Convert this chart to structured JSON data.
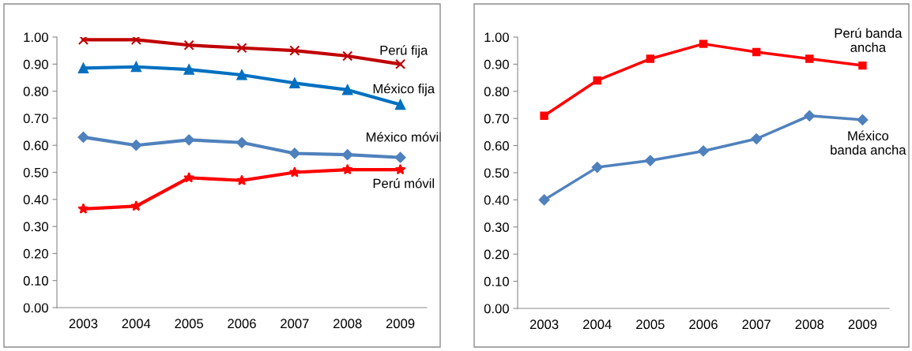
{
  "chart_data": [
    {
      "type": "line",
      "categories": [
        "2003",
        "2004",
        "2005",
        "2006",
        "2007",
        "2008",
        "2009"
      ],
      "ylim": [
        0,
        1
      ],
      "yticks": [
        {
          "value": 0,
          "label": "0.00"
        },
        {
          "value": 0.1,
          "label": "0.10"
        },
        {
          "value": 0.2,
          "label": "0.20"
        },
        {
          "value": 0.3,
          "label": "0.30"
        },
        {
          "value": 0.4,
          "label": "0.40"
        },
        {
          "value": 0.5,
          "label": "0.50"
        },
        {
          "value": 0.6,
          "label": "0.60"
        },
        {
          "value": 0.7,
          "label": "0.70"
        },
        {
          "value": 0.8,
          "label": "0.80"
        },
        {
          "value": 0.9,
          "label": "0.90"
        },
        {
          "value": 1,
          "label": "1.00"
        }
      ],
      "grid": false,
      "legend": false,
      "series": [
        {
          "name": "Perú fija",
          "color": "#c00000",
          "marker": "cross",
          "values": [
            0.99,
            0.99,
            0.97,
            0.96,
            0.95,
            0.93,
            0.9
          ]
        },
        {
          "name": "México fija",
          "color": "#0070c0",
          "marker": "triangle",
          "values": [
            0.885,
            0.89,
            0.88,
            0.86,
            0.83,
            0.805,
            0.75
          ]
        },
        {
          "name": "México móvil",
          "color": "#4f81bd",
          "marker": "diamond",
          "values": [
            0.63,
            0.6,
            0.62,
            0.61,
            0.57,
            0.565,
            0.555
          ]
        },
        {
          "name": "Perú móvil",
          "color": "#ff0000",
          "marker": "star",
          "values": [
            0.365,
            0.375,
            0.48,
            0.47,
            0.5,
            0.51,
            0.51
          ]
        }
      ]
    },
    {
      "type": "line",
      "categories": [
        "2003",
        "2004",
        "2005",
        "2006",
        "2007",
        "2008",
        "2009"
      ],
      "ylim": [
        0,
        1
      ],
      "yticks": [
        {
          "value": 0,
          "label": "0.00"
        },
        {
          "value": 0.1,
          "label": "0.10"
        },
        {
          "value": 0.2,
          "label": "0.20"
        },
        {
          "value": 0.3,
          "label": "0.30"
        },
        {
          "value": 0.4,
          "label": "0.40"
        },
        {
          "value": 0.5,
          "label": "0.50"
        },
        {
          "value": 0.6,
          "label": "0.60"
        },
        {
          "value": 0.7,
          "label": "0.70"
        },
        {
          "value": 0.8,
          "label": "0.80"
        },
        {
          "value": 0.9,
          "label": "0.90"
        },
        {
          "value": 1,
          "label": "1.00"
        }
      ],
      "grid": false,
      "legend": false,
      "series": [
        {
          "name": "Perú banda\nancha",
          "color": "#ff0000",
          "marker": "square",
          "values": [
            0.71,
            0.84,
            0.92,
            0.975,
            0.945,
            0.92,
            0.895
          ]
        },
        {
          "name": "México\nbanda ancha",
          "color": "#4f81bd",
          "marker": "diamond",
          "values": [
            0.4,
            0.52,
            0.545,
            0.58,
            0.625,
            0.71,
            0.695
          ]
        }
      ]
    }
  ]
}
